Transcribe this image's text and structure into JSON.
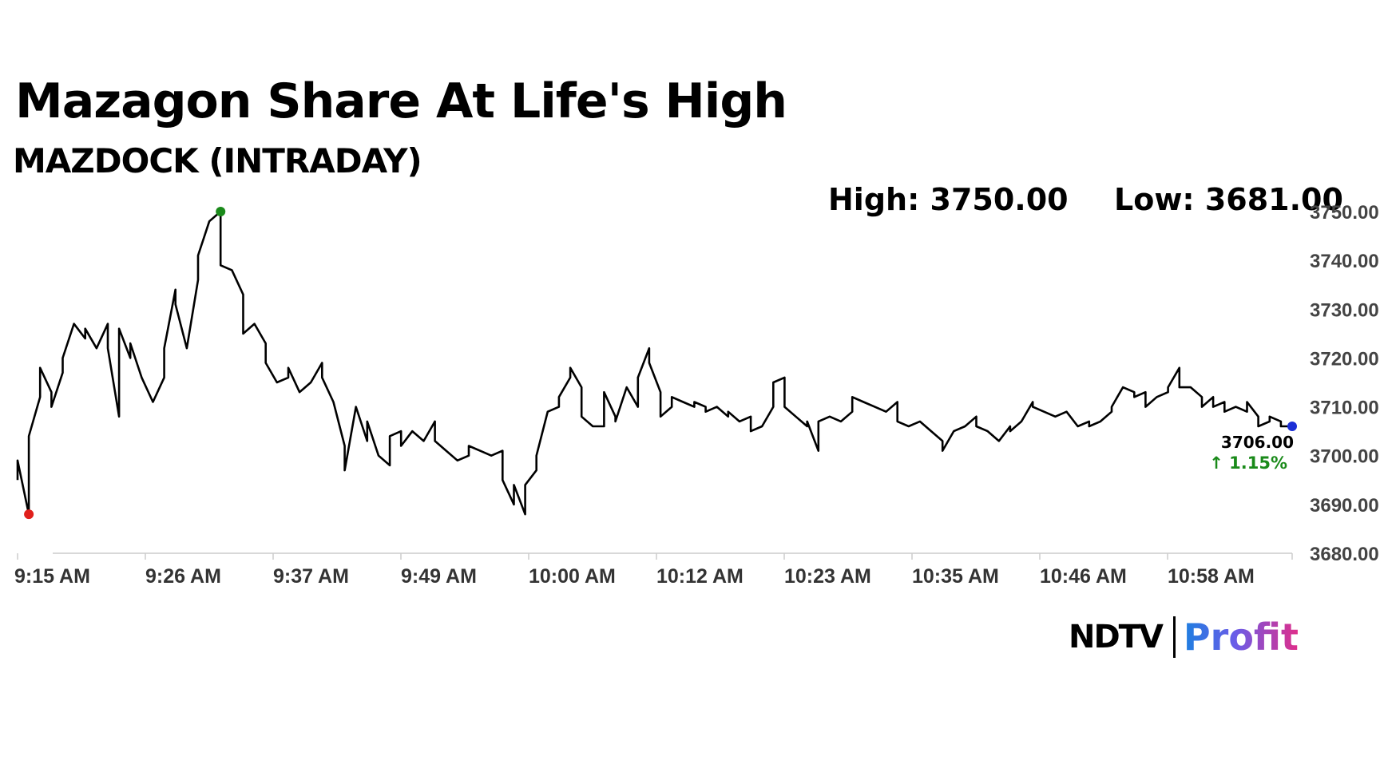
{
  "header": {
    "title": "Mazagon Share At Life's High",
    "subtitle": "MAZDOCK (INTRADAY)",
    "high_label": "High: 3750.00",
    "low_label": "Low: 3681.00"
  },
  "logo": {
    "brand": "NDTV",
    "product": "Profit"
  },
  "colors": {
    "line": "#000000",
    "high_marker": "#1a8a1a",
    "low_marker": "#e0201c",
    "last_marker": "#1c2fd6",
    "change_positive": "#1a8a1a",
    "axis": "#cccccc"
  },
  "chart_data": {
    "type": "line",
    "title": "Mazagon Share At Life's High",
    "subtitle": "MAZDOCK (INTRADAY)",
    "x_tick_labels": [
      "9:15 AM",
      "9:26 AM",
      "9:37 AM",
      "9:49 AM",
      "10:00 AM",
      "10:12 AM",
      "10:23 AM",
      "10:35 AM",
      "10:46 AM",
      "10:58 AM"
    ],
    "y_tick_labels": [
      "3680.00",
      "3690.00",
      "3700.00",
      "3710.00",
      "3720.00",
      "3730.00",
      "3740.00",
      "3750.00"
    ],
    "ylim": [
      3680,
      3750
    ],
    "xlim": [
      "9:15",
      "11:08"
    ],
    "series": [
      {
        "points": [
          [
            "9:15",
            3695
          ],
          [
            "9:15",
            3699
          ],
          [
            "9:16",
            3688
          ],
          [
            "9:16",
            3704
          ],
          [
            "9:17",
            3712
          ],
          [
            "9:17",
            3718
          ],
          [
            "9:18",
            3713
          ],
          [
            "9:18",
            3710
          ],
          [
            "9:19",
            3717
          ],
          [
            "9:19",
            3720
          ],
          [
            "9:20",
            3727
          ],
          [
            "9:21",
            3724
          ],
          [
            "9:21",
            3726
          ],
          [
            "9:22",
            3722
          ],
          [
            "9:23",
            3727
          ],
          [
            "9:23",
            3722
          ],
          [
            "9:24",
            3708
          ],
          [
            "9:24",
            3726
          ],
          [
            "9:25",
            3720
          ],
          [
            "9:25",
            3723
          ],
          [
            "9:26",
            3716
          ],
          [
            "9:27",
            3711
          ],
          [
            "9:28",
            3716
          ],
          [
            "9:28",
            3722
          ],
          [
            "9:29",
            3734
          ],
          [
            "9:29",
            3731
          ],
          [
            "9:30",
            3722
          ],
          [
            "9:31",
            3736
          ],
          [
            "9:31",
            3741
          ],
          [
            "9:32",
            3748
          ],
          [
            "9:33",
            3750
          ],
          [
            "9:33",
            3739
          ],
          [
            "9:34",
            3738
          ],
          [
            "9:35",
            3733
          ],
          [
            "9:35",
            3725
          ],
          [
            "9:36",
            3727
          ],
          [
            "9:37",
            3723
          ],
          [
            "9:37",
            3719
          ],
          [
            "9:38",
            3715
          ],
          [
            "9:39",
            3716
          ],
          [
            "9:39",
            3718
          ],
          [
            "9:40",
            3713
          ],
          [
            "9:41",
            3715
          ],
          [
            "9:42",
            3719
          ],
          [
            "9:42",
            3716
          ],
          [
            "9:43",
            3711
          ],
          [
            "9:44",
            3702
          ],
          [
            "9:44",
            3697
          ],
          [
            "9:45",
            3710
          ],
          [
            "9:46",
            3703
          ],
          [
            "9:46",
            3707
          ],
          [
            "9:47",
            3700
          ],
          [
            "9:48",
            3698
          ],
          [
            "9:48",
            3704
          ],
          [
            "9:49",
            3705
          ],
          [
            "9:49",
            3702
          ],
          [
            "9:50",
            3705
          ],
          [
            "9:51",
            3703
          ],
          [
            "9:52",
            3707
          ],
          [
            "9:52",
            3703
          ],
          [
            "9:53",
            3701
          ],
          [
            "9:54",
            3699
          ],
          [
            "9:55",
            3700
          ],
          [
            "9:55",
            3702
          ],
          [
            "9:56",
            3701
          ],
          [
            "9:57",
            3700
          ],
          [
            "9:57",
            3700
          ],
          [
            "9:58",
            3701
          ],
          [
            "9:58",
            3695
          ],
          [
            "9:59",
            3690
          ],
          [
            "9:59",
            3694
          ],
          [
            "10:00",
            3688
          ],
          [
            "10:00",
            3694
          ],
          [
            "10:01",
            3697
          ],
          [
            "10:01",
            3700
          ],
          [
            "10:02",
            3709
          ],
          [
            "10:03",
            3710
          ],
          [
            "10:03",
            3712
          ],
          [
            "10:04",
            3716
          ],
          [
            "10:04",
            3718
          ],
          [
            "10:05",
            3714
          ],
          [
            "10:05",
            3708
          ],
          [
            "10:06",
            3706
          ],
          [
            "10:07",
            3706
          ],
          [
            "10:07",
            3713
          ],
          [
            "10:08",
            3708
          ],
          [
            "10:08",
            3707
          ],
          [
            "10:09",
            3714
          ],
          [
            "10:10",
            3710
          ],
          [
            "10:10",
            3716
          ],
          [
            "10:11",
            3722
          ],
          [
            "10:11",
            3719
          ],
          [
            "10:12",
            3713
          ],
          [
            "10:12",
            3708
          ],
          [
            "10:13",
            3710
          ],
          [
            "10:13",
            3712
          ],
          [
            "10:14",
            3711
          ],
          [
            "10:15",
            3710
          ],
          [
            "10:15",
            3711
          ],
          [
            "10:16",
            3710
          ],
          [
            "10:16",
            3709
          ],
          [
            "10:17",
            3710
          ],
          [
            "10:18",
            3708
          ],
          [
            "10:18",
            3709
          ],
          [
            "10:19",
            3707
          ],
          [
            "10:20",
            3708
          ],
          [
            "10:20",
            3705
          ],
          [
            "10:21",
            3706
          ],
          [
            "10:22",
            3710
          ],
          [
            "10:22",
            3715
          ],
          [
            "10:23",
            3716
          ],
          [
            "10:23",
            3710
          ],
          [
            "10:24",
            3708
          ],
          [
            "10:25",
            3706
          ],
          [
            "10:25",
            3707
          ],
          [
            "10:26",
            3701
          ],
          [
            "10:26",
            3707
          ],
          [
            "10:27",
            3708
          ],
          [
            "10:28",
            3707
          ],
          [
            "10:29",
            3709
          ],
          [
            "10:29",
            3712
          ],
          [
            "10:30",
            3711
          ],
          [
            "10:31",
            3710
          ],
          [
            "10:31",
            3710
          ],
          [
            "10:32",
            3709
          ],
          [
            "10:33",
            3711
          ],
          [
            "10:33",
            3707
          ],
          [
            "10:34",
            3706
          ],
          [
            "10:35",
            3707
          ],
          [
            "10:36",
            3705
          ],
          [
            "10:37",
            3703
          ],
          [
            "10:37",
            3701
          ],
          [
            "10:38",
            3705
          ],
          [
            "10:39",
            3706
          ],
          [
            "10:40",
            3708
          ],
          [
            "10:40",
            3706
          ],
          [
            "10:41",
            3705
          ],
          [
            "10:42",
            3703
          ],
          [
            "10:43",
            3706
          ],
          [
            "10:43",
            3705
          ],
          [
            "10:44",
            3707
          ],
          [
            "10:45",
            3711
          ],
          [
            "10:45",
            3710
          ],
          [
            "10:46",
            3709
          ],
          [
            "10:47",
            3708
          ],
          [
            "10:48",
            3709
          ],
          [
            "10:49",
            3706
          ],
          [
            "10:50",
            3707
          ],
          [
            "10:50",
            3706
          ],
          [
            "10:51",
            3707
          ],
          [
            "10:52",
            3709
          ],
          [
            "10:52",
            3710
          ],
          [
            "10:53",
            3714
          ],
          [
            "10:54",
            3713
          ],
          [
            "10:54",
            3712
          ],
          [
            "10:55",
            3713
          ],
          [
            "10:55",
            3710
          ],
          [
            "10:56",
            3712
          ],
          [
            "10:57",
            3713
          ],
          [
            "10:57",
            3714
          ],
          [
            "10:58",
            3718
          ],
          [
            "10:58",
            3714
          ],
          [
            "10:59",
            3714
          ],
          [
            "11:00",
            3712
          ],
          [
            "11:00",
            3710
          ],
          [
            "11:01",
            3712
          ],
          [
            "11:01",
            3710
          ],
          [
            "11:02",
            3711
          ],
          [
            "11:02",
            3709
          ],
          [
            "11:03",
            3710
          ],
          [
            "11:04",
            3709
          ],
          [
            "11:04",
            3711
          ],
          [
            "11:05",
            3708
          ],
          [
            "11:05",
            3706
          ],
          [
            "11:06",
            3707
          ],
          [
            "11:06",
            3708
          ],
          [
            "11:07",
            3707
          ],
          [
            "11:07",
            3706
          ],
          [
            "11:08",
            3706
          ]
        ]
      }
    ],
    "markers": [
      {
        "role": "low",
        "time": "9:16",
        "value": 3688
      },
      {
        "role": "high",
        "time": "9:33",
        "value": 3750
      },
      {
        "role": "last",
        "time": "11:08",
        "value": 3706
      }
    ],
    "last_price_label": "3706.00",
    "change_label": "↑ 1.15%",
    "grid": false
  }
}
